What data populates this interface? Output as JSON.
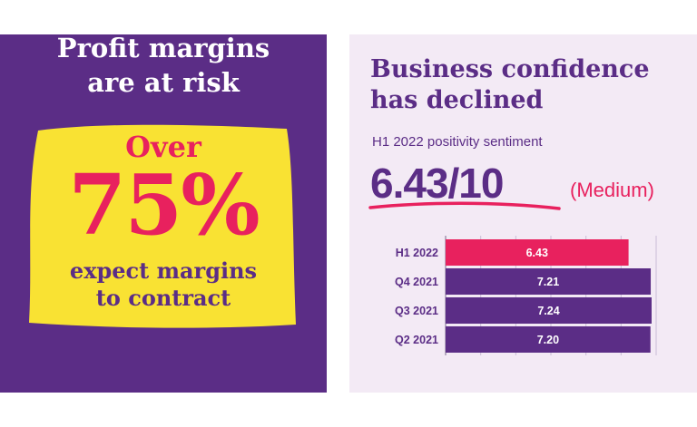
{
  "left": {
    "title_line1": "Profit margins",
    "title_line2": "are at risk",
    "over": "Over",
    "percent": "75%",
    "caption_line1": "expect margins",
    "caption_line2": "to contract"
  },
  "right": {
    "title_line1": "Business confidence",
    "title_line2": "has declined",
    "subtitle": "H1 2022 positivity sentiment",
    "score": "6.43/10",
    "level": "(Medium)"
  },
  "colors": {
    "purple": "#5b2d86",
    "pink": "#e8215e",
    "yellow": "#f9e233",
    "light_bg": "#f3eaf5"
  },
  "chart_data": {
    "type": "bar",
    "orientation": "horizontal",
    "categories": [
      "H1 2022",
      "Q4 2021",
      "Q3 2021",
      "Q2 2021"
    ],
    "values": [
      6.43,
      7.21,
      7.24,
      7.2
    ],
    "value_labels": [
      "6.43",
      "7.21",
      "7.24",
      "7.20"
    ],
    "bar_colors": [
      "#e8215e",
      "#5b2d86",
      "#5b2d86",
      "#5b2d86"
    ],
    "xlim": [
      0,
      7.4
    ],
    "grid": true
  }
}
